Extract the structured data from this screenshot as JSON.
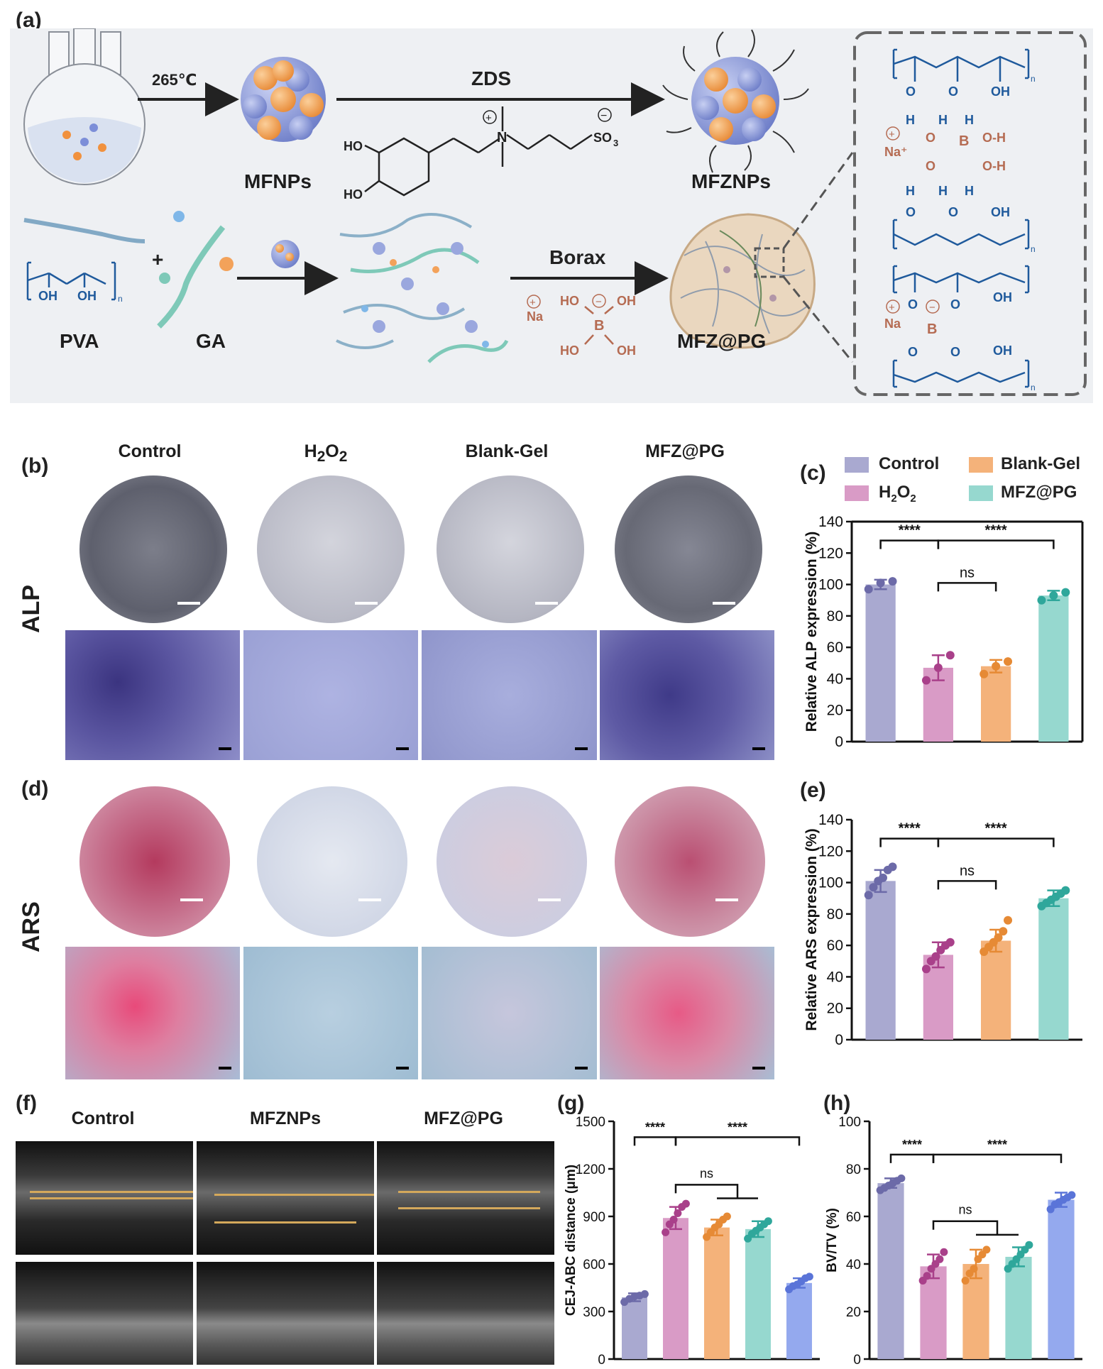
{
  "panel_labels": {
    "a": "(a)",
    "b": "(b)",
    "c": "(c)",
    "d": "(d)",
    "e": "(e)",
    "f": "(f)",
    "g": "(g)",
    "h": "(h)"
  },
  "schematic": {
    "temp": "265℃",
    "zds": "ZDS",
    "mfnps": "MFNPs",
    "mfznps": "MFZNPs",
    "borax": "Borax",
    "pva": "PVA",
    "ga": "GA",
    "product": "MFZ@PG",
    "plus": "+",
    "zds_ho1": "HO",
    "zds_ho2": "HO",
    "zds_so3": "SO",
    "zds_so3_sub": "3",
    "na_plus": "Na",
    "na_plus_ion": "Na⁺",
    "borate_ho1": "HO",
    "borate_oh1": "OH",
    "borate_ho2": "HO",
    "borate_oh2": "OH",
    "boron": "B",
    "oh": "OH",
    "o": "O",
    "h": "H",
    "n_sub": "n",
    "oh_h": "O-H"
  },
  "columns_bd": {
    "control": "Control",
    "h2o2": "H",
    "h2o2_sub": "2",
    "h2o2_o": "O",
    "h2o2_sub2": "2",
    "blank": "Blank-Gel",
    "mfz": "MFZ@PG"
  },
  "row_labels": {
    "alp": "ALP",
    "ars": "ARS"
  },
  "columns_f": {
    "control": "Control",
    "mfznps": "MFZNPs",
    "mfz": "MFZ@PG"
  },
  "colors": {
    "control": "#a9a9d0",
    "h2o2": "#d99bc6",
    "blank": "#f4b27a",
    "mfz": "#96d8cf",
    "blue": "#94a9ee",
    "control_dot": "#6c6aa8",
    "h2o2_dot": "#a9408a",
    "blank_dot": "#e68a35",
    "mfz_dot": "#2fa79b",
    "blue_dot": "#5a74d8",
    "chem_blue": "#1f5a9c",
    "chem_brown": "#b56b52"
  },
  "legend": [
    {
      "name": "Control",
      "color": "#a9a9d0"
    },
    {
      "name": "Blank-Gel",
      "color": "#f4b27a"
    },
    {
      "name": "H2O2",
      "color": "#d99bc6"
    },
    {
      "name": "MFZ@PG",
      "color": "#96d8cf"
    }
  ],
  "chart_data": [
    {
      "id": "c",
      "type": "bar",
      "categories": [
        "Control",
        "H2O2",
        "Blank-Gel",
        "MFZ@PG"
      ],
      "values": [
        100,
        47,
        48,
        93
      ],
      "errors": [
        3,
        8,
        4,
        3
      ],
      "points": [
        [
          97,
          101,
          102
        ],
        [
          39,
          47,
          55
        ],
        [
          43,
          48,
          51
        ],
        [
          90,
          93,
          95
        ]
      ],
      "ylabel": "Relative ALP expression (%)",
      "ylim": [
        0,
        140
      ],
      "yticks": [
        0,
        20,
        40,
        60,
        80,
        100,
        120,
        140
      ],
      "brackets": [
        {
          "from": 0,
          "to": 1,
          "level": 128,
          "label": "****"
        },
        {
          "from": 1,
          "to": 3,
          "level": 128,
          "label": "****"
        },
        {
          "from": 1,
          "to": 2,
          "level": 101,
          "label": "ns"
        }
      ]
    },
    {
      "id": "e",
      "type": "bar",
      "categories": [
        "Control",
        "H2O2",
        "Blank-Gel",
        "MFZ@PG"
      ],
      "values": [
        101,
        54,
        63,
        90
      ],
      "errors": [
        7,
        8,
        7,
        5
      ],
      "points": [
        [
          92,
          97,
          101,
          103,
          108,
          110
        ],
        [
          45,
          50,
          53,
          57,
          60,
          62
        ],
        [
          56,
          59,
          62,
          65,
          69,
          76
        ],
        [
          85,
          87,
          89,
          91,
          93,
          95
        ]
      ],
      "ylabel": "Relative ARS expression (%)",
      "ylim": [
        0,
        140
      ],
      "yticks": [
        0,
        20,
        40,
        60,
        80,
        100,
        120,
        140
      ],
      "brackets": [
        {
          "from": 0,
          "to": 1,
          "level": 128,
          "label": "****"
        },
        {
          "from": 1,
          "to": 3,
          "level": 128,
          "label": "****"
        },
        {
          "from": 1,
          "to": 2,
          "level": 101,
          "label": "ns"
        }
      ]
    },
    {
      "id": "g",
      "type": "bar",
      "categories": [
        "",
        "",
        "",
        "",
        ""
      ],
      "values": [
        390,
        890,
        830,
        820,
        480
      ],
      "errors": [
        25,
        70,
        50,
        50,
        30
      ],
      "points": [
        [
          360,
          380,
          395,
          400,
          410
        ],
        [
          800,
          850,
          880,
          920,
          960,
          980
        ],
        [
          770,
          800,
          830,
          850,
          880,
          900
        ],
        [
          760,
          790,
          810,
          830,
          850,
          870
        ],
        [
          440,
          460,
          470,
          490,
          510,
          520
        ]
      ],
      "ylabel": "CEJ-ABC distance (μm)",
      "ylim": [
        0,
        1500
      ],
      "yticks": [
        0,
        300,
        600,
        900,
        1200,
        1500
      ],
      "brackets": [
        {
          "from": 0,
          "to": 1,
          "level": 1400,
          "label": "****"
        },
        {
          "from": 1,
          "to": 4,
          "level": 1400,
          "label": "****"
        },
        {
          "from": 1,
          "to": 3,
          "level": 1100,
          "label": "ns",
          "group": true
        }
      ]
    },
    {
      "id": "h",
      "type": "bar",
      "categories": [
        "",
        "",
        "",
        "",
        ""
      ],
      "values": [
        74,
        39,
        40,
        43,
        67
      ],
      "errors": [
        2,
        5,
        6,
        4,
        3
      ],
      "points": [
        [
          71,
          72,
          73,
          74,
          75,
          76
        ],
        [
          33,
          35,
          38,
          40,
          42,
          45
        ],
        [
          33,
          36,
          38,
          42,
          44,
          46
        ],
        [
          38,
          40,
          42,
          44,
          46,
          48
        ],
        [
          63,
          65,
          66,
          67,
          68,
          69
        ]
      ],
      "ylabel": "BV/TV (%)",
      "ylim": [
        0,
        100
      ],
      "yticks": [
        0,
        20,
        40,
        60,
        80,
        100
      ],
      "brackets": [
        {
          "from": 0,
          "to": 1,
          "level": 86,
          "label": "****"
        },
        {
          "from": 1,
          "to": 4,
          "level": 86,
          "label": "****"
        },
        {
          "from": 1,
          "to": 3,
          "level": 58,
          "label": "ns",
          "group": true
        }
      ]
    }
  ]
}
